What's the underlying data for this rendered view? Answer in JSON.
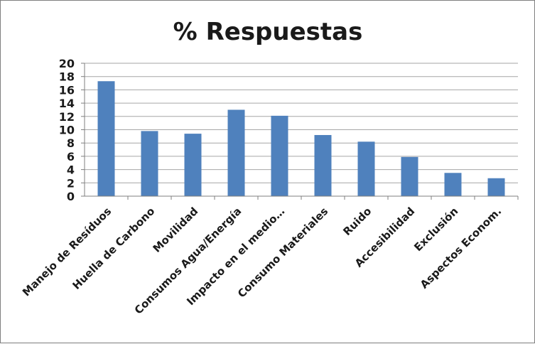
{
  "chart_data": {
    "type": "bar",
    "title": "% Respuestas",
    "xlabel": "",
    "ylabel": "",
    "ylim": [
      0,
      20
    ],
    "yticks": [
      0,
      2,
      4,
      6,
      8,
      10,
      12,
      14,
      16,
      18,
      20
    ],
    "grid": true,
    "legend": "none",
    "bar_color": "#4f81bd",
    "grid_color": "#a6a6a6",
    "categories": [
      "Manejo de Resíduos",
      "Huella de Carbono",
      "Movilidad",
      "Consumos Agua/Energía",
      "Impacto en el medio…",
      "Consumo Materiales",
      "Ruido",
      "Accesibilidad",
      "Exclusión",
      "Aspectos Econom."
    ],
    "values": [
      17.3,
      9.8,
      9.4,
      13.0,
      12.1,
      9.2,
      8.2,
      5.9,
      3.5,
      2.7
    ]
  }
}
